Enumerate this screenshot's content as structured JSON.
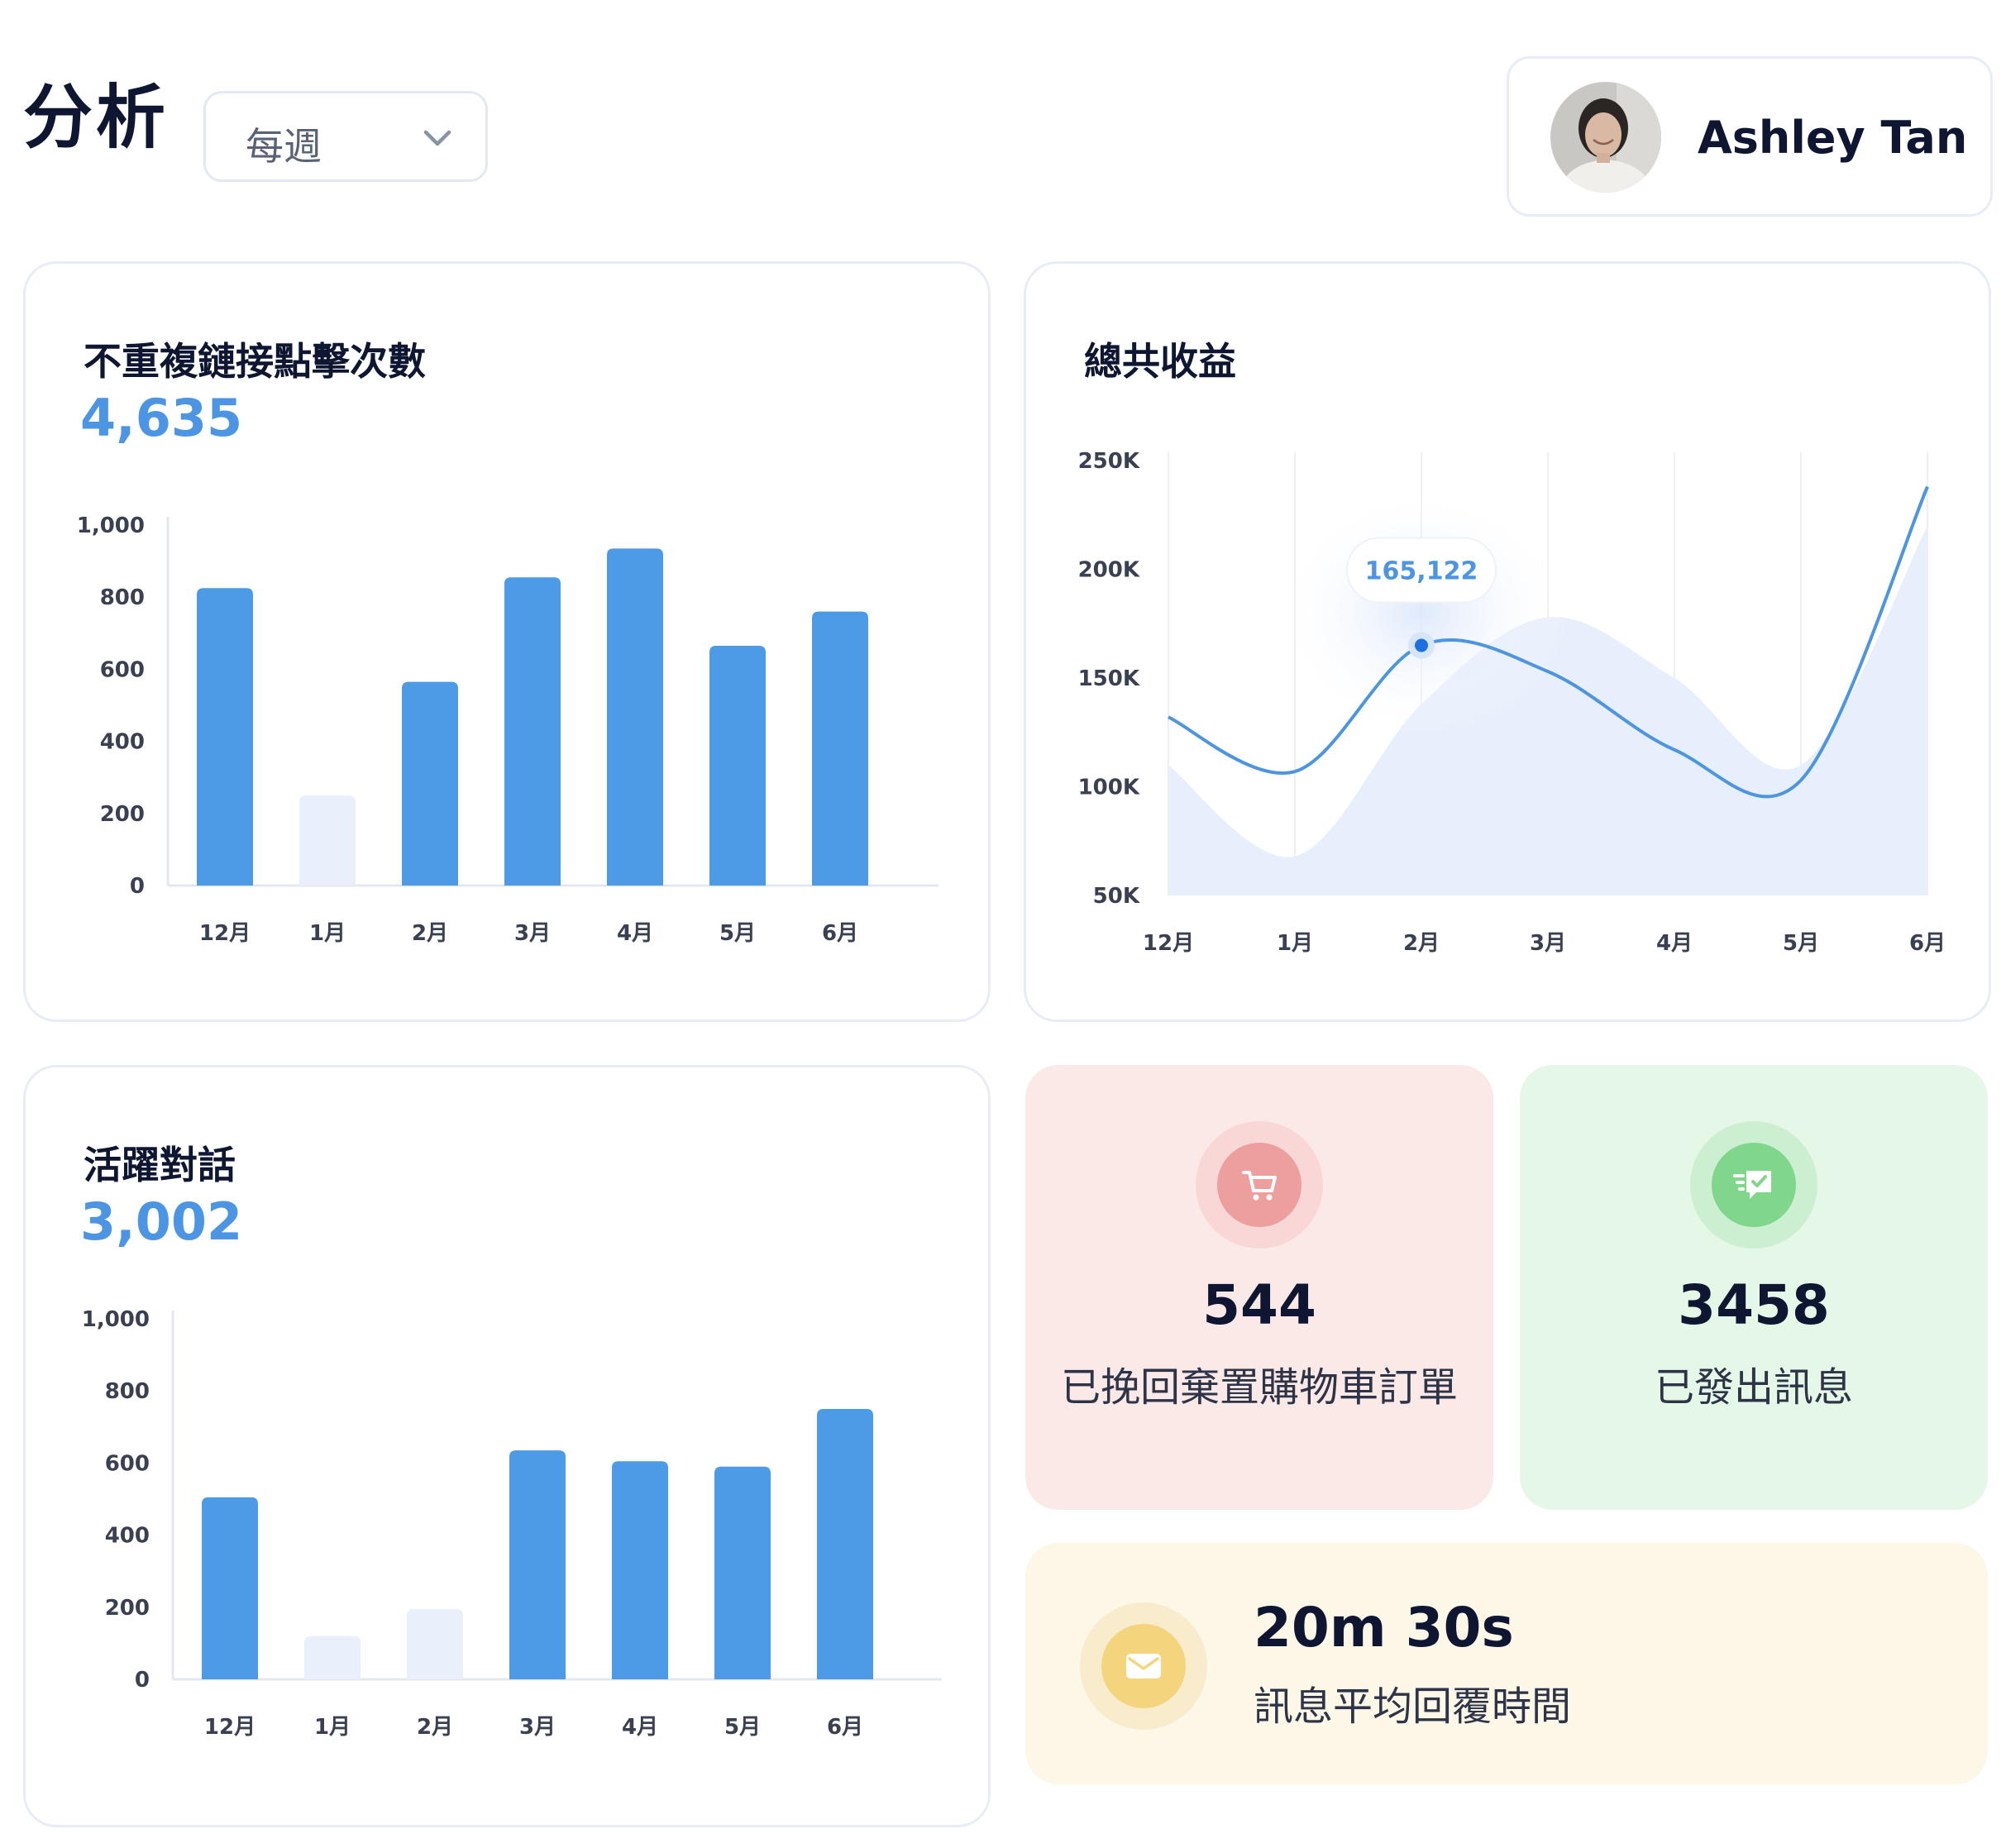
{
  "header": {
    "title": "分析",
    "period": {
      "selected": "每週"
    }
  },
  "user": {
    "name": "Ashley Tan"
  },
  "clicks_card": {
    "title": "不重複鏈接點擊次數",
    "total": "4,635",
    "y_ticks": [
      "1,000",
      "800",
      "600",
      "400",
      "200",
      "0"
    ]
  },
  "revenue_card": {
    "title": "總共收益",
    "tooltip": "165,122",
    "y_ticks": [
      "250K",
      "200K",
      "150K",
      "100K",
      "50K"
    ]
  },
  "conversations_card": {
    "title": "活躍對話",
    "total": "3,002",
    "y_ticks": [
      "1,000",
      "800",
      "600",
      "400",
      "200",
      "0"
    ]
  },
  "stats": {
    "cart": {
      "value": "544",
      "label": "已挽回棄置購物車訂單",
      "icon": "cart-icon"
    },
    "messages": {
      "value": "3458",
      "label": "已發出訊息",
      "icon": "message-icon"
    },
    "response": {
      "value": "20m 30s",
      "label": "訊息平均回覆時間",
      "icon": "envelope-icon"
    }
  },
  "colors": {
    "accent": "#4d9be6",
    "bar_active": "#4d9be6",
    "bar_muted": "#e9f0fc",
    "title_text": "#0e1631",
    "cart_bg": "#fbe9e8",
    "messages_bg": "#e5f7e7",
    "response_bg": "#fdf7e8"
  },
  "chart_data": [
    {
      "type": "bar",
      "title": "不重複鏈接點擊次數",
      "categories": [
        "12月",
        "1月",
        "2月",
        "3月",
        "4月",
        "5月",
        "6月"
      ],
      "values": [
        825,
        250,
        565,
        855,
        935,
        665,
        760
      ],
      "muted": [
        false,
        true,
        false,
        false,
        false,
        false,
        false
      ],
      "ylim": [
        0,
        1000
      ],
      "yticks": [
        0,
        200,
        400,
        600,
        800,
        1000
      ],
      "grid": false
    },
    {
      "type": "line",
      "title": "總共收益",
      "categories": [
        "12月",
        "1月",
        "2月",
        "3月",
        "4月",
        "5月",
        "6月"
      ],
      "series": [
        {
          "values": [
            132,
            107,
            165,
            153,
            117,
            103,
            238
          ]
        }
      ],
      "area_values": [
        110,
        68,
        138,
        178,
        150,
        110,
        220
      ],
      "highlight": {
        "category": "2月",
        "value": 165122
      },
      "ylim": [
        50,
        250
      ],
      "yticks_label": [
        "50K",
        "100K",
        "150K",
        "200K",
        "250K"
      ],
      "unit": "K",
      "grid": "vertical"
    },
    {
      "type": "bar",
      "title": "活躍對話",
      "categories": [
        "12月",
        "1月",
        "2月",
        "3月",
        "4月",
        "5月",
        "6月"
      ],
      "values": [
        505,
        120,
        195,
        635,
        605,
        590,
        750
      ],
      "muted": [
        false,
        true,
        true,
        false,
        false,
        false,
        false
      ],
      "ylim": [
        0,
        1000
      ],
      "yticks": [
        0,
        200,
        400,
        600,
        800,
        1000
      ],
      "grid": false
    }
  ]
}
